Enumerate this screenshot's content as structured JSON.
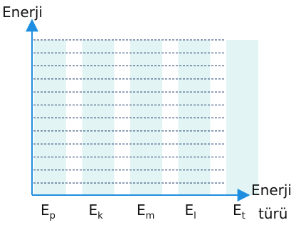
{
  "y_axis_label": "Enerji",
  "x_axis_label_line1": "Enerji",
  "x_axis_label_line2": "türü",
  "categories": [
    {
      "main": "E",
      "sub": "p"
    },
    {
      "main": "E",
      "sub": "k"
    },
    {
      "main": "E",
      "sub": "m"
    },
    {
      "main": "E",
      "sub": "l"
    },
    {
      "main": "E",
      "sub": "t"
    }
  ],
  "grid_line_count": 12,
  "colors": {
    "axis": "#1e8fe0",
    "column_fill": "#e2f5f4",
    "grid": "#1f3a6e"
  }
}
